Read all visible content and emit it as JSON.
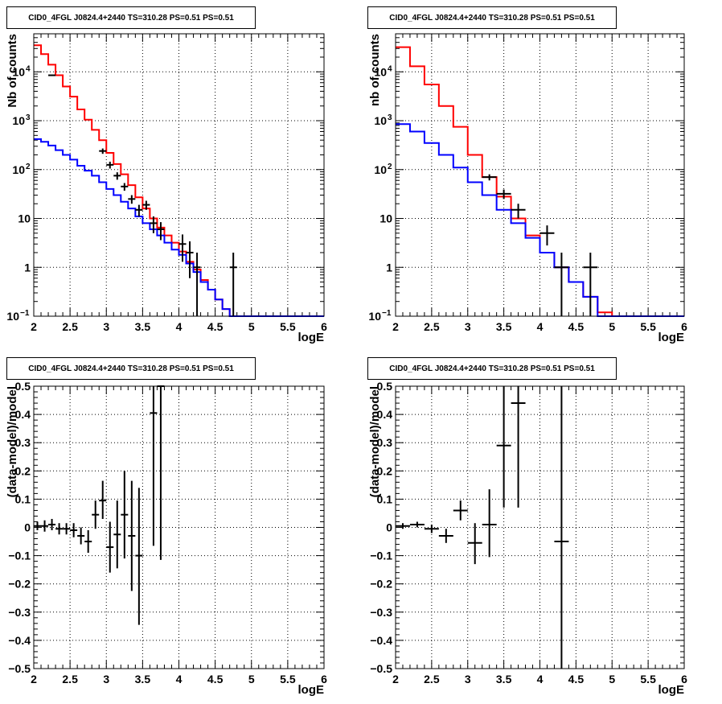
{
  "chart_data": [
    {
      "type": "line",
      "title": "CID0_4FGL J0824.4+2440 TS=310.28 PS=0.51 PS=0.51",
      "xlabel": "logE",
      "ylabel": "Nb of counts",
      "xlim": [
        2,
        6
      ],
      "ylim": [
        0.1,
        60000
      ],
      "yscale": "log",
      "grid": true,
      "x_ticks": [
        "2",
        "2.5",
        "3",
        "3.5",
        "4",
        "4.5",
        "5",
        "5.5",
        "6"
      ],
      "y_ticks": [
        {
          "v": 0.1,
          "t": "10",
          "sup": "−1"
        },
        {
          "v": 1,
          "t": "1"
        },
        {
          "v": 10,
          "t": "10"
        },
        {
          "v": 100,
          "t": "10",
          "sup": "2"
        },
        {
          "v": 1000,
          "t": "10",
          "sup": "3"
        },
        {
          "v": 10000,
          "t": "10",
          "sup": "4"
        }
      ],
      "bin_edges": [
        2.0,
        2.1,
        2.2,
        2.3,
        2.4,
        2.5,
        2.6,
        2.7,
        2.8,
        2.9,
        3.0,
        3.1,
        3.2,
        3.3,
        3.4,
        3.5,
        3.6,
        3.7,
        3.8,
        3.9,
        4.0,
        4.1,
        4.2,
        4.3,
        4.4,
        4.5,
        4.6,
        4.7,
        4.8,
        4.9,
        5.0,
        5.1,
        5.2,
        5.3,
        5.4,
        5.5,
        5.6,
        5.7,
        5.8,
        5.9,
        6.0
      ],
      "series": [
        {
          "color": "#ff0000",
          "values": [
            35000,
            23000,
            14000,
            8500,
            5000,
            3100,
            1700,
            1050,
            650,
            400,
            220,
            130,
            80,
            48,
            27,
            16,
            10,
            6.5,
            4.5,
            3.2,
            2.1,
            1.3,
            0.9,
            0.55,
            0.35,
            0.22,
            0.14,
            0.1,
            0.1,
            0.1,
            0.1,
            0.1,
            0.1,
            0.1,
            0.1,
            0.1,
            0.1,
            0.1,
            0.1,
            0.1
          ]
        },
        {
          "color": "#0000ff",
          "values": [
            420,
            370,
            310,
            250,
            200,
            160,
            120,
            95,
            75,
            55,
            40,
            30,
            22,
            16,
            11,
            8,
            6,
            4.5,
            3.2,
            2.3,
            1.8,
            1.2,
            0.8,
            0.5,
            0.35,
            0.22,
            0.14,
            0.1,
            0.1,
            0.1,
            0.1,
            0.1,
            0.1,
            0.1,
            0.1,
            0.1,
            0.1,
            0.1,
            0.1,
            0.1
          ]
        }
      ],
      "points": [
        {
          "x": 2.25,
          "y": 8500,
          "xerr": 0.05,
          "ylo": 8300,
          "yhi": 8700
        },
        {
          "x": 2.95,
          "y": 240,
          "xerr": 0.05,
          "ylo": 210,
          "yhi": 270
        },
        {
          "x": 3.05,
          "y": 125,
          "xerr": 0.05,
          "ylo": 105,
          "yhi": 145
        },
        {
          "x": 3.15,
          "y": 75,
          "xerr": 0.05,
          "ylo": 62,
          "yhi": 88
        },
        {
          "x": 3.25,
          "y": 45,
          "xerr": 0.05,
          "ylo": 37,
          "yhi": 53
        },
        {
          "x": 3.35,
          "y": 25,
          "xerr": 0.05,
          "ylo": 20,
          "yhi": 30
        },
        {
          "x": 3.45,
          "y": 15,
          "xerr": 0.05,
          "ylo": 11,
          "yhi": 19
        },
        {
          "x": 3.55,
          "y": 19,
          "xerr": 0.05,
          "ylo": 15,
          "yhi": 23
        },
        {
          "x": 3.65,
          "y": 8,
          "xerr": 0.05,
          "ylo": 5,
          "yhi": 11
        },
        {
          "x": 3.75,
          "y": 6,
          "xerr": 0.05,
          "ylo": 3.6,
          "yhi": 8.4
        },
        {
          "x": 4.05,
          "y": 3,
          "xerr": 0.05,
          "ylo": 1.3,
          "yhi": 4.7
        },
        {
          "x": 4.15,
          "y": 2,
          "xerr": 0.05,
          "ylo": 0.6,
          "yhi": 3.4
        },
        {
          "x": 4.25,
          "y": 1,
          "xerr": 0.05,
          "ylo": 0.1,
          "yhi": 2
        },
        {
          "x": 4.75,
          "y": 1,
          "xerr": 0.05,
          "ylo": 0.1,
          "yhi": 2
        }
      ]
    },
    {
      "type": "line",
      "title": "CID0_4FGL J0824.4+2440 TS=310.28 PS=0.51 PS=0.51",
      "xlabel": "logE",
      "ylabel": "nb of counts",
      "xlim": [
        2,
        6
      ],
      "ylim": [
        0.1,
        60000
      ],
      "yscale": "log",
      "grid": true,
      "x_ticks": [
        "2",
        "2.5",
        "3",
        "3.5",
        "4",
        "4.5",
        "5",
        "5.5",
        "6"
      ],
      "y_ticks": [
        {
          "v": 0.1,
          "t": "10",
          "sup": "−1"
        },
        {
          "v": 1,
          "t": "1"
        },
        {
          "v": 10,
          "t": "10"
        },
        {
          "v": 100,
          "t": "10",
          "sup": "2"
        },
        {
          "v": 1000,
          "t": "10",
          "sup": "3"
        },
        {
          "v": 10000,
          "t": "10",
          "sup": "4"
        }
      ],
      "bin_edges": [
        2.0,
        2.2,
        2.4,
        2.6,
        2.8,
        3.0,
        3.2,
        3.4,
        3.6,
        3.8,
        4.0,
        4.2,
        4.4,
        4.6,
        4.8,
        5.0,
        5.2,
        5.4,
        5.6,
        5.8,
        6.0
      ],
      "series": [
        {
          "color": "#ff0000",
          "values": [
            32000,
            13000,
            5500,
            2000,
            750,
            200,
            70,
            28,
            10,
            4.5,
            2,
            1,
            0.5,
            0.25,
            0.12,
            0.1,
            0.1,
            0.1,
            0.1,
            0.1
          ]
        },
        {
          "color": "#0000ff",
          "values": [
            850,
            600,
            350,
            200,
            110,
            55,
            30,
            15,
            8,
            4,
            2,
            1,
            0.5,
            0.25,
            0.1,
            0.1,
            0.1,
            0.1,
            0.1,
            0.1
          ]
        }
      ],
      "points": [
        {
          "x": 3.3,
          "y": 70,
          "xerr": 0.1,
          "ylo": 60,
          "yhi": 80
        },
        {
          "x": 3.5,
          "y": 32,
          "xerr": 0.1,
          "ylo": 25,
          "yhi": 39
        },
        {
          "x": 3.7,
          "y": 15,
          "xerr": 0.1,
          "ylo": 10,
          "yhi": 20
        },
        {
          "x": 4.1,
          "y": 5,
          "xerr": 0.1,
          "ylo": 2.8,
          "yhi": 7.2
        },
        {
          "x": 4.3,
          "y": 1,
          "xerr": 0.1,
          "ylo": 0.1,
          "yhi": 2
        },
        {
          "x": 4.7,
          "y": 1,
          "xerr": 0.1,
          "ylo": 0.1,
          "yhi": 2
        }
      ]
    },
    {
      "type": "scatter",
      "title": "CID0_4FGL J0824.4+2440 TS=310.28 PS=0.51 PS=0.51",
      "xlabel": "logE",
      "ylabel": "(data-model)/model",
      "xlim": [
        2,
        6
      ],
      "ylim": [
        -0.5,
        0.5
      ],
      "grid": true,
      "x_ticks": [
        "2",
        "2.5",
        "3",
        "3.5",
        "4",
        "4.5",
        "5",
        "5.5",
        "6"
      ],
      "y_ticks": [
        {
          "v": -0.5,
          "t": "−0.5"
        },
        {
          "v": -0.4,
          "t": "−0.4"
        },
        {
          "v": -0.3,
          "t": "−0.3"
        },
        {
          "v": -0.2,
          "t": "−0.2"
        },
        {
          "v": -0.1,
          "t": "−0.1"
        },
        {
          "v": 0,
          "t": "0"
        },
        {
          "v": 0.1,
          "t": "0.1"
        },
        {
          "v": 0.2,
          "t": "0.2"
        },
        {
          "v": 0.3,
          "t": "0.3"
        },
        {
          "v": 0.4,
          "t": "0.4"
        },
        {
          "v": 0.5,
          "t": "0.5"
        }
      ],
      "points": [
        {
          "x": 2.05,
          "y": 0.005,
          "xerr": 0.05,
          "ylo": -0.01,
          "yhi": 0.02
        },
        {
          "x": 2.15,
          "y": 0.005,
          "xerr": 0.05,
          "ylo": -0.015,
          "yhi": 0.025
        },
        {
          "x": 2.25,
          "y": 0.01,
          "xerr": 0.05,
          "ylo": -0.01,
          "yhi": 0.03
        },
        {
          "x": 2.35,
          "y": -0.005,
          "xerr": 0.05,
          "ylo": -0.025,
          "yhi": 0.015
        },
        {
          "x": 2.45,
          "y": -0.005,
          "xerr": 0.05,
          "ylo": -0.025,
          "yhi": 0.015
        },
        {
          "x": 2.55,
          "y": -0.01,
          "xerr": 0.05,
          "ylo": -0.035,
          "yhi": 0.015
        },
        {
          "x": 2.65,
          "y": -0.03,
          "xerr": 0.05,
          "ylo": -0.06,
          "yhi": 0.0
        },
        {
          "x": 2.75,
          "y": -0.05,
          "xerr": 0.05,
          "ylo": -0.09,
          "yhi": -0.01
        },
        {
          "x": 2.85,
          "y": 0.045,
          "xerr": 0.05,
          "ylo": -0.005,
          "yhi": 0.095
        },
        {
          "x": 2.95,
          "y": 0.095,
          "xerr": 0.05,
          "ylo": 0.03,
          "yhi": 0.165
        },
        {
          "x": 3.05,
          "y": -0.07,
          "xerr": 0.05,
          "ylo": -0.16,
          "yhi": 0.02
        },
        {
          "x": 3.15,
          "y": -0.025,
          "xerr": 0.05,
          "ylo": -0.145,
          "yhi": 0.095
        },
        {
          "x": 3.25,
          "y": 0.045,
          "xerr": 0.05,
          "ylo": -0.11,
          "yhi": 0.2
        },
        {
          "x": 3.35,
          "y": -0.03,
          "xerr": 0.05,
          "ylo": -0.225,
          "yhi": 0.165
        },
        {
          "x": 3.45,
          "y": -0.1,
          "xerr": 0.05,
          "ylo": -0.345,
          "yhi": 0.14
        },
        {
          "x": 3.65,
          "y": 0.405,
          "xerr": 0.05,
          "ylo": -0.065,
          "yhi": 0.5
        },
        {
          "x": 3.75,
          "y": 0.5,
          "xerr": 0.05,
          "ylo": -0.115,
          "yhi": 0.5
        }
      ]
    },
    {
      "type": "scatter",
      "title": "CID0_4FGL J0824.4+2440 TS=310.28 PS=0.51 PS=0.51",
      "xlabel": "logE",
      "ylabel": "(data-model)/model",
      "xlim": [
        2,
        6
      ],
      "ylim": [
        -0.5,
        0.5
      ],
      "grid": true,
      "x_ticks": [
        "2",
        "2.5",
        "3",
        "3.5",
        "4",
        "4.5",
        "5",
        "5.5",
        "6"
      ],
      "y_ticks": [
        {
          "v": -0.5,
          "t": "−0.5"
        },
        {
          "v": -0.4,
          "t": "−0.4"
        },
        {
          "v": -0.3,
          "t": "−0.3"
        },
        {
          "v": -0.2,
          "t": "−0.2"
        },
        {
          "v": -0.1,
          "t": "−0.1"
        },
        {
          "v": 0,
          "t": "0"
        },
        {
          "v": 0.1,
          "t": "0.1"
        },
        {
          "v": 0.2,
          "t": "0.2"
        },
        {
          "v": 0.3,
          "t": "0.3"
        },
        {
          "v": 0.4,
          "t": "0.4"
        },
        {
          "v": 0.5,
          "t": "0.5"
        }
      ],
      "points": [
        {
          "x": 2.1,
          "y": 0.005,
          "xerr": 0.1,
          "ylo": -0.005,
          "yhi": 0.015
        },
        {
          "x": 2.3,
          "y": 0.01,
          "xerr": 0.1,
          "ylo": 0.0,
          "yhi": 0.02
        },
        {
          "x": 2.5,
          "y": -0.005,
          "xerr": 0.1,
          "ylo": -0.02,
          "yhi": 0.01
        },
        {
          "x": 2.7,
          "y": -0.03,
          "xerr": 0.1,
          "ylo": -0.055,
          "yhi": -0.005
        },
        {
          "x": 2.9,
          "y": 0.06,
          "xerr": 0.1,
          "ylo": 0.025,
          "yhi": 0.095
        },
        {
          "x": 3.1,
          "y": -0.055,
          "xerr": 0.1,
          "ylo": -0.13,
          "yhi": 0.015
        },
        {
          "x": 3.3,
          "y": 0.01,
          "xerr": 0.1,
          "ylo": -0.105,
          "yhi": 0.135
        },
        {
          "x": 3.5,
          "y": 0.29,
          "xerr": 0.1,
          "ylo": 0.07,
          "yhi": 0.5
        },
        {
          "x": 3.7,
          "y": 0.44,
          "xerr": 0.1,
          "ylo": 0.07,
          "yhi": 0.5
        },
        {
          "x": 4.3,
          "y": -0.05,
          "xerr": 0.1,
          "ylo": -0.5,
          "yhi": 0.5
        }
      ]
    }
  ]
}
